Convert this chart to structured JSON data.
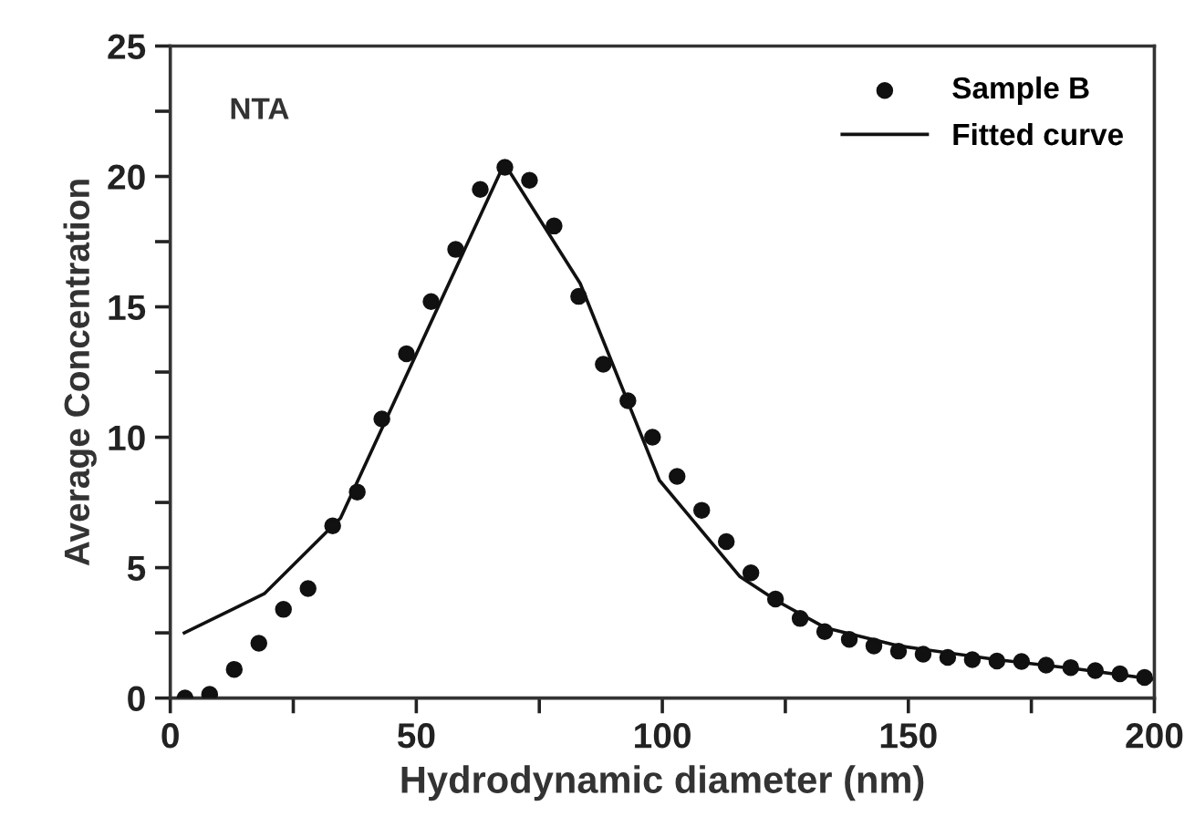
{
  "chart_data": {
    "type": "scatter",
    "xlabel": "Hydrodynamic diameter (nm)",
    "ylabel": "Average Concentration",
    "annotations": [
      "NTA"
    ],
    "series": [
      {
        "name": "Sample B",
        "color": "#111111",
        "marker": "circle",
        "x": [
          3,
          8,
          13,
          18,
          23,
          28,
          33,
          38,
          43,
          48,
          53,
          58,
          63,
          68,
          73,
          78,
          83,
          88,
          93,
          98,
          103,
          108,
          113,
          118,
          123,
          128,
          133,
          138,
          143,
          148,
          153,
          158,
          163,
          168,
          173,
          178,
          183,
          188,
          193,
          198
        ],
        "values": [
          0,
          0.14,
          1.1,
          2.1,
          3.4,
          4.2,
          6.6,
          7.9,
          10.7,
          13.2,
          15.2,
          17.2,
          19.5,
          20.35,
          19.85,
          18.1,
          15.4,
          12.8,
          11.4,
          10.0,
          8.5,
          7.2,
          6.0,
          4.8,
          3.8,
          3.05,
          2.55,
          2.25,
          2.0,
          1.8,
          1.68,
          1.56,
          1.47,
          1.42,
          1.4,
          1.26,
          1.17,
          1.05,
          0.93,
          0.79
        ]
      },
      {
        "name": "Fitted curve",
        "type": "line",
        "color": "#111111",
        "line_style": "solid",
        "x": [
          2.85,
          19.1,
          34.6,
          67.9,
          83.3,
          99.4,
          115.8,
          123.5,
          133.1,
          148.1,
          168,
          184,
          200
        ],
        "values": [
          2.5,
          4.0,
          6.9,
          20.5,
          15.9,
          8.35,
          4.65,
          3.7,
          2.7,
          2.0,
          1.47,
          1.12,
          0.72
        ]
      }
    ],
    "xlim": [
      0,
      200
    ],
    "xticks": [
      0,
      {
        "value": 25,
        "label": null
      },
      50,
      {
        "value": 75,
        "label": null
      },
      100,
      {
        "value": 125,
        "label": null
      },
      150,
      {
        "value": 175,
        "label": null
      },
      200
    ],
    "ylim": [
      0,
      25
    ],
    "yticks": [
      0,
      {
        "value": 2.5,
        "label": null
      },
      5,
      {
        "value": 7.5,
        "label": null
      },
      10,
      {
        "value": 12.5,
        "label": null
      },
      15,
      {
        "value": 17.5,
        "label": null
      },
      20,
      {
        "value": 22.5,
        "label": null
      },
      25
    ],
    "legend": "top right",
    "grid": false
  }
}
